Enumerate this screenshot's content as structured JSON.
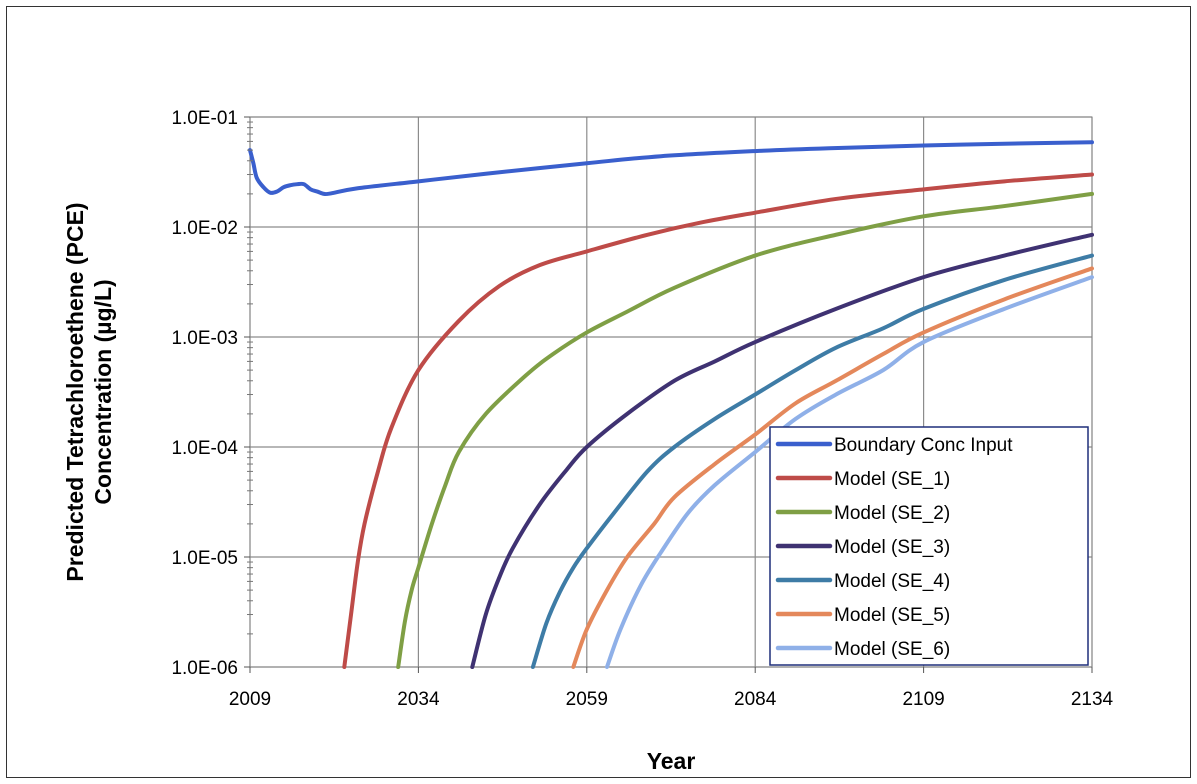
{
  "chart_data": {
    "type": "line",
    "title": "",
    "xlabel": "Year",
    "ylabel_lines": [
      "Predicted Tetrachloroethene (PCE)",
      "Concentration (µg/L)"
    ],
    "y_scale": "log",
    "xlim": [
      2009,
      2134
    ],
    "ylim": [
      1e-06,
      0.1
    ],
    "x_ticks": [
      2009,
      2034,
      2059,
      2084,
      2109,
      2134
    ],
    "x_tick_labels": [
      "2009",
      "2034",
      "2059",
      "2084",
      "2109",
      "2134"
    ],
    "y_ticks": [
      1e-06,
      1e-05,
      0.0001,
      0.001,
      0.01,
      0.1
    ],
    "y_tick_labels": [
      "1.0E-06",
      "1.0E-05",
      "1.0E-04",
      "1.0E-03",
      "1.0E-02",
      "1.0E-01"
    ],
    "grid": true,
    "legend_position": "bottom-right inside plot",
    "series": [
      {
        "name": "Boundary Conc Input",
        "color": "#3a5fcd",
        "points": [
          [
            2009,
            0.05
          ],
          [
            2009.5,
            0.038
          ],
          [
            2010,
            0.028
          ],
          [
            2011,
            0.023
          ],
          [
            2012,
            0.0205
          ],
          [
            2013,
            0.021
          ],
          [
            2014,
            0.023
          ],
          [
            2015,
            0.024
          ],
          [
            2016,
            0.0245
          ],
          [
            2017,
            0.0245
          ],
          [
            2018,
            0.022
          ],
          [
            2019,
            0.021
          ],
          [
            2020,
            0.02
          ],
          [
            2021,
            0.0202
          ],
          [
            2025,
            0.0225
          ],
          [
            2034,
            0.026
          ],
          [
            2044,
            0.0305
          ],
          [
            2059,
            0.038
          ],
          [
            2070,
            0.044
          ],
          [
            2084,
            0.049
          ],
          [
            2095,
            0.052
          ],
          [
            2109,
            0.055
          ],
          [
            2120,
            0.057
          ],
          [
            2134,
            0.059
          ]
        ]
      },
      {
        "name": "Model (SE_1)",
        "color": "#be4b48",
        "points": [
          [
            2023,
            1e-06
          ],
          [
            2024,
            3e-06
          ],
          [
            2025,
            9e-06
          ],
          [
            2026,
            2e-05
          ],
          [
            2028,
            6e-05
          ],
          [
            2030,
            0.00015
          ],
          [
            2034,
            0.0005
          ],
          [
            2040,
            0.0014
          ],
          [
            2046,
            0.0029
          ],
          [
            2052,
            0.0045
          ],
          [
            2059,
            0.006
          ],
          [
            2068,
            0.0085
          ],
          [
            2076,
            0.011
          ],
          [
            2084,
            0.0135
          ],
          [
            2096,
            0.018
          ],
          [
            2109,
            0.022
          ],
          [
            2121,
            0.026
          ],
          [
            2134,
            0.03
          ]
        ]
      },
      {
        "name": "Model (SE_2)",
        "color": "#7f9f45",
        "points": [
          [
            2031,
            1e-06
          ],
          [
            2032,
            2.6e-06
          ],
          [
            2033,
            5e-06
          ],
          [
            2034,
            8e-06
          ],
          [
            2036,
            2e-05
          ],
          [
            2038,
            4.5e-05
          ],
          [
            2040,
            9e-05
          ],
          [
            2044,
            0.0002
          ],
          [
            2050,
            0.00045
          ],
          [
            2054,
            0.0007
          ],
          [
            2059,
            0.0011
          ],
          [
            2065,
            0.0017
          ],
          [
            2072,
            0.0028
          ],
          [
            2084,
            0.0055
          ],
          [
            2096,
            0.0085
          ],
          [
            2109,
            0.0125
          ],
          [
            2121,
            0.0155
          ],
          [
            2134,
            0.02
          ]
        ]
      },
      {
        "name": "Model (SE_3)",
        "color": "#3f3272",
        "points": [
          [
            2042,
            1e-06
          ],
          [
            2044,
            3e-06
          ],
          [
            2046,
            6.5e-06
          ],
          [
            2048,
            1.2e-05
          ],
          [
            2052,
            3e-05
          ],
          [
            2056,
            6.2e-05
          ],
          [
            2059,
            0.0001
          ],
          [
            2065,
            0.0002
          ],
          [
            2072,
            0.0004
          ],
          [
            2078,
            0.0006
          ],
          [
            2084,
            0.0009
          ],
          [
            2096,
            0.0018
          ],
          [
            2109,
            0.0035
          ],
          [
            2121,
            0.0055
          ],
          [
            2134,
            0.0085
          ]
        ]
      },
      {
        "name": "Model (SE_4)",
        "color": "#3e7ca6",
        "points": [
          [
            2051,
            1e-06
          ],
          [
            2053,
            2.5e-06
          ],
          [
            2055,
            4.8e-06
          ],
          [
            2057,
            8e-06
          ],
          [
            2059,
            1.2e-05
          ],
          [
            2063,
            2.5e-05
          ],
          [
            2068,
            6e-05
          ],
          [
            2072,
            0.0001
          ],
          [
            2078,
            0.00018
          ],
          [
            2084,
            0.0003
          ],
          [
            2090,
            0.0005
          ],
          [
            2096,
            0.0008
          ],
          [
            2103,
            0.0012
          ],
          [
            2109,
            0.0018
          ],
          [
            2121,
            0.0033
          ],
          [
            2134,
            0.0055
          ]
        ]
      },
      {
        "name": "Model (SE_5)",
        "color": "#e4885b",
        "points": [
          [
            2057,
            1e-06
          ],
          [
            2059,
            2.2e-06
          ],
          [
            2062,
            5e-06
          ],
          [
            2065,
            1e-05
          ],
          [
            2069,
            2e-05
          ],
          [
            2072,
            3.5e-05
          ],
          [
            2078,
            7e-05
          ],
          [
            2084,
            0.00013
          ],
          [
            2090,
            0.00025
          ],
          [
            2096,
            0.0004
          ],
          [
            2103,
            0.0007
          ],
          [
            2109,
            0.0011
          ],
          [
            2121,
            0.0022
          ],
          [
            2134,
            0.0042
          ]
        ]
      },
      {
        "name": "Model (SE_6)",
        "color": "#8fb0e8",
        "points": [
          [
            2062,
            1e-06
          ],
          [
            2064,
            2.2e-06
          ],
          [
            2067,
            5.5e-06
          ],
          [
            2070,
            1.1e-05
          ],
          [
            2074,
            2.5e-05
          ],
          [
            2078,
            4.5e-05
          ],
          [
            2084,
            9e-05
          ],
          [
            2090,
            0.00018
          ],
          [
            2096,
            0.0003
          ],
          [
            2103,
            0.0005
          ],
          [
            2109,
            0.0009
          ],
          [
            2121,
            0.0018
          ],
          [
            2134,
            0.0035
          ]
        ]
      }
    ]
  }
}
